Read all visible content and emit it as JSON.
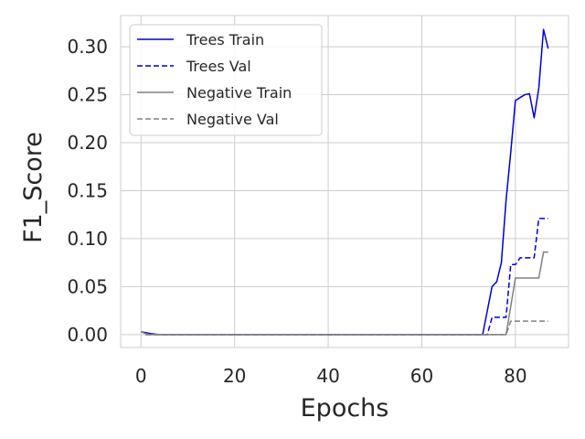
{
  "chart_data": {
    "type": "line",
    "xlabel": "Epochs",
    "ylabel": "F1_Score",
    "xlim": [
      -4.35,
      91.35
    ],
    "ylim": [
      -0.0135,
      0.3325
    ],
    "xticks": [
      0,
      20,
      40,
      60,
      80
    ],
    "yticks": [
      0.0,
      0.05,
      0.1,
      0.15,
      0.2,
      0.25,
      0.3
    ],
    "ytick_labels": [
      "0.00",
      "0.05",
      "0.10",
      "0.15",
      "0.20",
      "0.25",
      "0.30"
    ],
    "grid": true,
    "legend_position": "top-left",
    "series": [
      {
        "name": "Trees Train",
        "color": "#0000cc",
        "dash": "solid",
        "x": [
          0,
          1,
          2,
          3,
          4,
          73,
          74,
          75,
          76,
          77,
          78,
          79,
          80,
          81,
          82,
          83,
          84,
          85,
          86,
          87
        ],
        "y": [
          0.003,
          0.002,
          0.001,
          0.0005,
          0.0,
          0.0,
          0.025,
          0.05,
          0.055,
          0.075,
          0.14,
          0.19,
          0.244,
          0.247,
          0.25,
          0.251,
          0.226,
          0.257,
          0.318,
          0.298
        ]
      },
      {
        "name": "Trees Val",
        "color": "#0000cc",
        "dash": "dashed",
        "x": [
          1,
          74,
          75,
          78,
          79,
          80,
          81,
          84,
          85,
          87
        ],
        "y": [
          0.0,
          0.0,
          0.018,
          0.018,
          0.073,
          0.073,
          0.08,
          0.08,
          0.121,
          0.121
        ]
      },
      {
        "name": "Negative Train",
        "color": "#808080",
        "dash": "solid",
        "x": [
          0,
          1,
          2,
          78,
          80,
          85,
          86,
          87
        ],
        "y": [
          0.003,
          0.001,
          0.0,
          0.0,
          0.059,
          0.059,
          0.086,
          0.086
        ]
      },
      {
        "name": "Negative Val",
        "color": "#808080",
        "dash": "dashed",
        "x": [
          1,
          78,
          79,
          87
        ],
        "y": [
          0.0,
          0.0,
          0.014,
          0.014
        ]
      }
    ]
  }
}
